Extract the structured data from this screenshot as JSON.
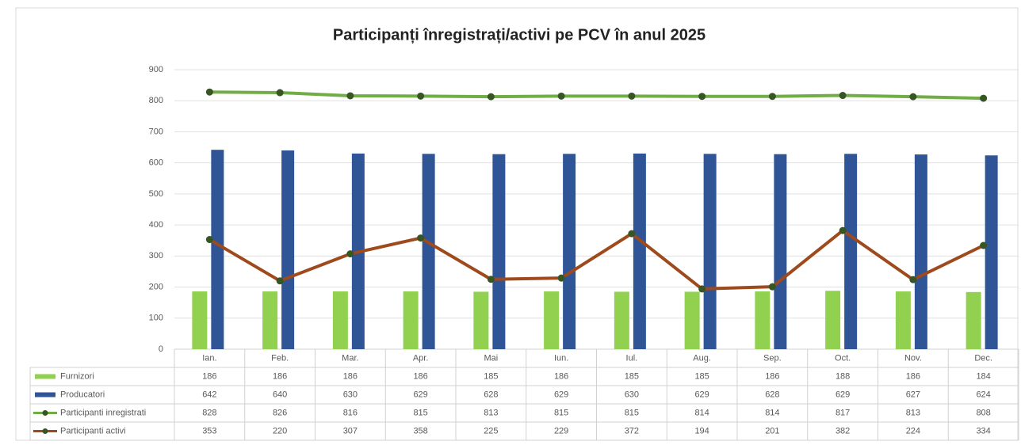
{
  "chart_data": {
    "type": "bar_line_table",
    "title": "Participanți înregistrați/activi pe PCV în anul 2025",
    "categories": [
      "Ian.",
      "Feb.",
      "Mar.",
      "Apr.",
      "Mai",
      "Iun.",
      "Iul.",
      "Aug.",
      "Sep.",
      "Oct.",
      "Nov.",
      "Dec."
    ],
    "ylim": [
      0,
      900
    ],
    "yticks": [
      0,
      100,
      200,
      300,
      400,
      500,
      600,
      700,
      800,
      900
    ],
    "grid": true,
    "series": [
      {
        "name": "Furnizori",
        "kind": "bar",
        "color": "#92d050",
        "values": [
          186,
          186,
          186,
          186,
          185,
          186,
          185,
          185,
          186,
          188,
          186,
          184
        ]
      },
      {
        "name": "Producatori",
        "kind": "bar",
        "color": "#2f5597",
        "values": [
          642,
          640,
          630,
          629,
          628,
          629,
          630,
          629,
          628,
          629,
          627,
          624
        ]
      },
      {
        "name": "Participanti inregistrati",
        "kind": "line",
        "color": "#70ad47",
        "marker_color": "#375623",
        "values": [
          828,
          826,
          816,
          815,
          813,
          815,
          815,
          814,
          814,
          817,
          813,
          808
        ]
      },
      {
        "name": "Participanti activi",
        "kind": "line",
        "color": "#9e4a1c",
        "marker_color": "#375623",
        "values": [
          353,
          220,
          307,
          358,
          225,
          229,
          372,
          194,
          201,
          382,
          224,
          334
        ]
      }
    ]
  }
}
